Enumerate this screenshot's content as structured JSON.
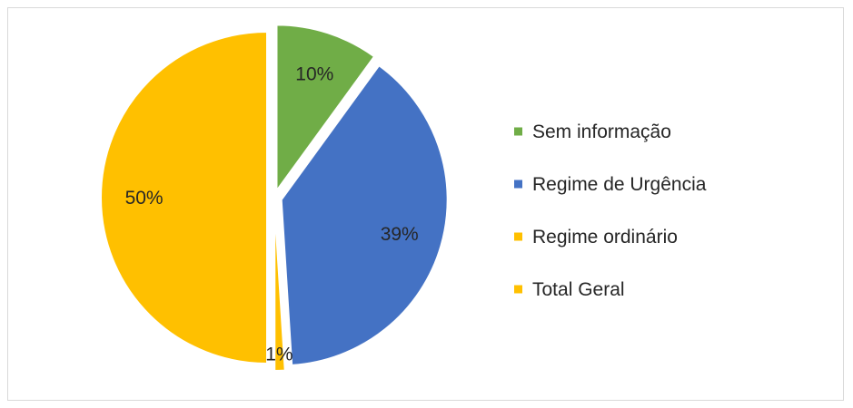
{
  "chart_data": {
    "type": "pie",
    "title": "",
    "slices": [
      {
        "label": "Sem informação",
        "value": 10,
        "display": "10%",
        "color": "#70ad47"
      },
      {
        "label": "Regime de Urgência",
        "value": 39,
        "display": "39%",
        "color": "#4472c4"
      },
      {
        "label": "Regime ordinário",
        "value": 1,
        "display": "1%",
        "color": "#ffc000"
      },
      {
        "label": "Total Geral",
        "value": 50,
        "display": "50%",
        "color": "#ffc000"
      }
    ],
    "legend_position": "right",
    "exploded": true
  }
}
